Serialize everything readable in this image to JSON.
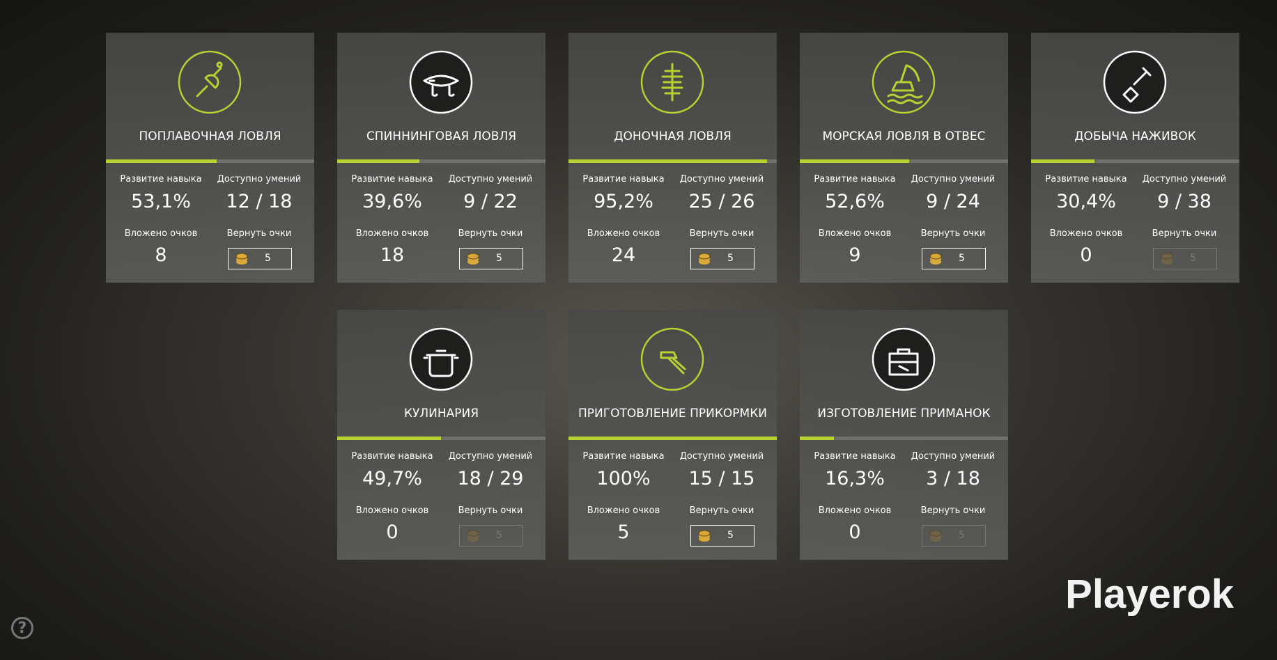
{
  "labels": {
    "skill": "Развитие навыка",
    "available": "Доступно умений",
    "invested": "Вложено очков",
    "refund": "Вернуть очки"
  },
  "cards": [
    {
      "title": "ПОПЛАВОЧНАЯ ЛОВЛЯ",
      "skill": {
        "value": 53.1,
        "label": "53,1%"
      },
      "available": "12 / 18",
      "invested": 8,
      "refund_cost": 5,
      "refund_enabled": true,
      "accent": "#b9d032"
    },
    {
      "title": "СПИННИНГОВАЯ ЛОВЛЯ",
      "skill": {
        "value": 39.6,
        "label": "39,6%"
      },
      "available": "9 / 22",
      "invested": 18,
      "refund_cost": 5,
      "refund_enabled": true,
      "accent": "#ffffff"
    },
    {
      "title": "ДОНОЧНАЯ ЛОВЛЯ",
      "skill": {
        "value": 95.2,
        "label": "95,2%"
      },
      "available": "25 / 26",
      "invested": 24,
      "refund_cost": 5,
      "refund_enabled": true,
      "accent": "#b9d032"
    },
    {
      "title": "МОРСКАЯ ЛОВЛЯ В ОТВЕС",
      "skill": {
        "value": 52.6,
        "label": "52,6%"
      },
      "available": "9 / 24",
      "invested": 9,
      "refund_cost": 5,
      "refund_enabled": true,
      "accent": "#b9d032"
    },
    {
      "title": "ДОБЫЧА НАЖИВОК",
      "skill": {
        "value": 30.4,
        "label": "30,4%"
      },
      "available": "9 / 38",
      "invested": 0,
      "refund_cost": 5,
      "refund_enabled": false,
      "accent": "#ffffff"
    },
    {
      "title": "КУЛИНАРИЯ",
      "skill": {
        "value": 49.7,
        "label": "49,7%"
      },
      "available": "18 / 29",
      "invested": 0,
      "refund_cost": 5,
      "refund_enabled": false,
      "accent": "#ffffff"
    },
    {
      "title": "ПРИГОТОВЛЕНИЕ ПРИКОРМКИ",
      "skill": {
        "value": 100,
        "label": "100%"
      },
      "available": "15 / 15",
      "invested": 5,
      "refund_cost": 5,
      "refund_enabled": true,
      "accent": "#b9d032"
    },
    {
      "title": "ИЗГОТОВЛЕНИЕ ПРИМАНОК",
      "skill": {
        "value": 16.3,
        "label": "16,3%"
      },
      "available": "3 / 18",
      "invested": 0,
      "refund_cost": 5,
      "refund_enabled": false,
      "accent": "#ffffff"
    }
  ],
  "watermark": "Playerok",
  "help": "?"
}
